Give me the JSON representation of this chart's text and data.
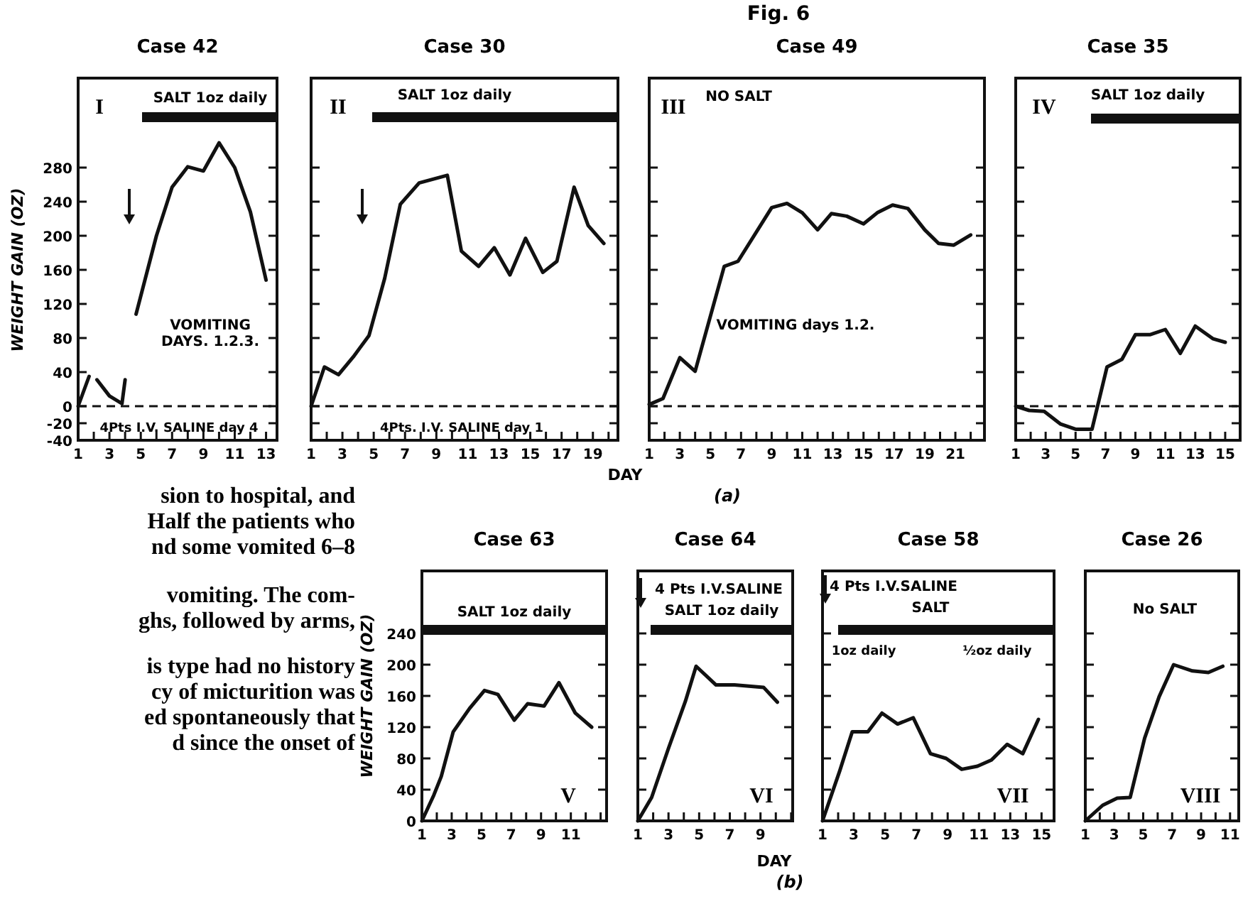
{
  "chart_data": [
    {
      "type": "line",
      "title": "Case 42",
      "ylabel": "WEIGHT GAIN (OZ)",
      "annotations": [
        "I",
        "SALT 1oz daily",
        "VOMITING\nDAYS. 1.2.3.",
        "4Pts I.V. SALINE day 4"
      ],
      "x": [
        1,
        1.7,
        1.9,
        2.2,
        3,
        3.8,
        4,
        4.3,
        4.7,
        6,
        7,
        8,
        9,
        10,
        11,
        12,
        13
      ],
      "series": [
        {
          "color": "#111111",
          "values": [
            0,
            35,
            null,
            31,
            12,
            3,
            31,
            null,
            108,
            200,
            257,
            281,
            276,
            309,
            280,
            228,
            148
          ]
        }
      ],
      "xlim": [
        1,
        13.7
      ],
      "ylim": [
        -40,
        385
      ],
      "xticks": [
        1,
        {
          "value": 2,
          "label": null
        },
        3,
        {
          "value": 4,
          "label": null
        },
        5,
        {
          "value": 6,
          "label": null
        },
        7,
        {
          "value": 8,
          "label": null
        },
        9,
        {
          "value": 10,
          "label": null
        },
        11,
        {
          "value": 12,
          "label": null
        },
        13
      ],
      "yticks": [
        -40,
        -20,
        0,
        40,
        80,
        120,
        160,
        200,
        240,
        280
      ],
      "ref_lines": [
        {
          "axis": "y",
          "value": 0,
          "line_style": "dashed"
        }
      ]
    },
    {
      "type": "line",
      "title": "Case 30",
      "annotations": [
        "II",
        "SALT 1oz daily",
        "4Pts. I.V. SALINE day 1"
      ],
      "x": [
        1,
        1.85,
        2.75,
        3.7,
        4.7,
        5.7,
        6.7,
        7.9,
        9.7,
        10.6,
        11.7,
        12.7,
        13.7,
        14.7,
        15.8,
        16.7,
        17.8,
        18.7,
        19.7
      ],
      "series": [
        {
          "color": "#111111",
          "values": [
            0,
            46,
            37,
            58,
            83,
            150,
            237,
            262,
            271,
            182,
            164,
            186,
            154,
            197,
            157,
            170,
            257,
            212,
            191
          ]
        }
      ],
      "xlim": [
        1,
        20.6
      ],
      "ylim": [
        -40,
        385
      ],
      "xticks": [
        1,
        {
          "value": 2,
          "label": null
        },
        3,
        {
          "value": 4,
          "label": null
        },
        5,
        {
          "value": 6,
          "label": null
        },
        7,
        {
          "value": 8,
          "label": null
        },
        9,
        {
          "value": 10,
          "label": null
        },
        11,
        {
          "value": 12,
          "label": null
        },
        13,
        {
          "value": 14,
          "label": null
        },
        15,
        {
          "value": 16,
          "label": null
        },
        17,
        {
          "value": 18,
          "label": null
        },
        19,
        {
          "value": 20,
          "label": null
        }
      ],
      "yticks": [
        -40,
        -20,
        0,
        40,
        80,
        120,
        160,
        200,
        240,
        280
      ],
      "tick_labels": "x",
      "ref_lines": [
        {
          "axis": "y",
          "value": 0,
          "line_style": "dashed"
        }
      ]
    },
    {
      "type": "line",
      "title": "Case 49",
      "xlabel": "DAY",
      "annotations": [
        "III",
        "NO SALT",
        "VOMITING days 1.2.",
        "Fig. 6",
        "(a)"
      ],
      "x": [
        1,
        1.9,
        3,
        4,
        5.9,
        6.8,
        9,
        10,
        11,
        12,
        12.9,
        13.9,
        15,
        15.9,
        16.9,
        17.9,
        19,
        19.9,
        20.9,
        22
      ],
      "series": [
        {
          "color": "#111111",
          "values": [
            2,
            9,
            57,
            41,
            164,
            170,
            233,
            238,
            227,
            207,
            226,
            223,
            214,
            227,
            236,
            232,
            207,
            191,
            189,
            201
          ]
        }
      ],
      "xlim": [
        1,
        22.9
      ],
      "ylim": [
        -40,
        385
      ],
      "xticks": [
        1,
        {
          "value": 2,
          "label": null
        },
        3,
        {
          "value": 4,
          "label": null
        },
        5,
        {
          "value": 6,
          "label": null
        },
        7,
        {
          "value": 8,
          "label": null
        },
        9,
        {
          "value": 10,
          "label": null
        },
        11,
        {
          "value": 12,
          "label": null
        },
        13,
        {
          "value": 14,
          "label": null
        },
        15,
        {
          "value": 16,
          "label": null
        },
        17,
        {
          "value": 18,
          "label": null
        },
        19,
        {
          "value": 20,
          "label": null
        },
        21,
        {
          "value": 22,
          "label": null
        }
      ],
      "yticks": [
        -40,
        -20,
        0,
        40,
        80,
        120,
        160,
        200,
        240,
        280
      ],
      "tick_labels": "x",
      "ref_lines": [
        {
          "axis": "y",
          "value": 0,
          "line_style": "dashed"
        }
      ]
    },
    {
      "type": "line",
      "title": "Case 35",
      "annotations": [
        "IV",
        "SALT 1oz daily"
      ],
      "x": [
        1,
        1.9,
        2.9,
        4,
        5,
        6.1,
        7.1,
        8.1,
        9,
        10,
        11,
        12,
        13,
        14.2,
        15
      ],
      "series": [
        {
          "color": "#111111",
          "values": [
            0,
            -5,
            -6,
            -21,
            -27,
            -27,
            46,
            55,
            84,
            84,
            90,
            62,
            94,
            79,
            75
          ]
        }
      ],
      "xlim": [
        1,
        16
      ],
      "ylim": [
        -40,
        385
      ],
      "xticks": [
        1,
        {
          "value": 2,
          "label": null
        },
        3,
        {
          "value": 4,
          "label": null
        },
        5,
        {
          "value": 6,
          "label": null
        },
        7,
        {
          "value": 8,
          "label": null
        },
        9,
        {
          "value": 10,
          "label": null
        },
        11,
        {
          "value": 12,
          "label": null
        },
        13,
        {
          "value": 14,
          "label": null
        },
        15
      ],
      "yticks": [
        -40,
        -20,
        0,
        40,
        80,
        120,
        160,
        200,
        240,
        280
      ],
      "tick_labels": "x",
      "ref_lines": [
        {
          "axis": "y",
          "value": 0,
          "line_style": "dashed"
        }
      ]
    },
    {
      "type": "line",
      "title": "Case 63",
      "ylabel": "WEIGHT GAIN (OZ)",
      "annotations": [
        "V",
        "SALT 1oz daily"
      ],
      "x": [
        1,
        1.8,
        2.3,
        3.1,
        4.2,
        5.2,
        6.1,
        7.2,
        8.1,
        9.2,
        10.2,
        11.3,
        12.4
      ],
      "series": [
        {
          "color": "#111111",
          "values": [
            0,
            33,
            57,
            114,
            144,
            167,
            162,
            129,
            150,
            147,
            177,
            138,
            120
          ]
        }
      ],
      "xlim": [
        1,
        13.4
      ],
      "ylim": [
        0,
        320
      ],
      "xticks": [
        1,
        {
          "value": 2,
          "label": null
        },
        3,
        {
          "value": 4,
          "label": null
        },
        5,
        {
          "value": 6,
          "label": null
        },
        7,
        {
          "value": 8,
          "label": null
        },
        9,
        {
          "value": 10,
          "label": null
        },
        11,
        {
          "value": 12,
          "label": null
        },
        {
          "value": 13,
          "label": null
        }
      ],
      "yticks": [
        0,
        40,
        80,
        120,
        160,
        200,
        240
      ]
    },
    {
      "type": "line",
      "title": "Case 64",
      "xlabel": "DAY",
      "annotations": [
        "VI",
        "4 Pts I.V.SALINE",
        "SALT 1oz daily",
        "(b)"
      ],
      "x": [
        1,
        1.9,
        3,
        4.1,
        4.8,
        6.1,
        7.3,
        9.2,
        10.1
      ],
      "series": [
        {
          "color": "#111111",
          "values": [
            0,
            30,
            93,
            153,
            198,
            174,
            174,
            171,
            152
          ]
        }
      ],
      "xlim": [
        1,
        11.1
      ],
      "ylim": [
        0,
        320
      ],
      "xticks": [
        1,
        {
          "value": 2,
          "label": null
        },
        3,
        {
          "value": 4,
          "label": null
        },
        5,
        {
          "value": 6,
          "label": null
        },
        7,
        {
          "value": 8,
          "label": null
        },
        9,
        {
          "value": 10,
          "label": null
        },
        {
          "value": 11,
          "label": null
        }
      ],
      "yticks": [
        0,
        40,
        80,
        120,
        160,
        200,
        240
      ],
      "tick_labels": "x"
    },
    {
      "type": "line",
      "title": "Case 58",
      "annotations": [
        "VII",
        "4 Pts I.V.SALINE",
        "SALT",
        "1oz daily",
        "½oz daily"
      ],
      "x": [
        1,
        2.1,
        2.9,
        3.9,
        4.8,
        5.8,
        6.8,
        7.9,
        8.9,
        9.9,
        10.9,
        11.8,
        12.8,
        13.8,
        14.8
      ],
      "series": [
        {
          "color": "#111111",
          "values": [
            0,
            64,
            114,
            114,
            138,
            124,
            132,
            86,
            80,
            66,
            70,
            78,
            98,
            86,
            130
          ]
        }
      ],
      "xlim": [
        1,
        15.8
      ],
      "ylim": [
        0,
        320
      ],
      "xticks": [
        1,
        {
          "value": 2,
          "label": null
        },
        3,
        {
          "value": 4,
          "label": null
        },
        5,
        {
          "value": 6,
          "label": null
        },
        7,
        {
          "value": 8,
          "label": null
        },
        9,
        {
          "value": 10,
          "label": null
        },
        11,
        {
          "value": 12,
          "label": null
        },
        13,
        {
          "value": 14,
          "label": null
        },
        15
      ],
      "yticks": [
        0,
        40,
        80,
        120,
        160,
        200,
        240
      ],
      "tick_labels": "x"
    },
    {
      "type": "line",
      "title": "Case 26",
      "annotations": [
        "VIII",
        "No SALT"
      ],
      "x": [
        1,
        2.2,
        3.2,
        4.1,
        5.1,
        6.1,
        7.1,
        8.4,
        9.5,
        10.5
      ],
      "series": [
        {
          "color": "#111111",
          "values": [
            0,
            20,
            29,
            30,
            106,
            159,
            200,
            192,
            190,
            198
          ]
        }
      ],
      "xlim": [
        1,
        11.6
      ],
      "ylim": [
        0,
        320
      ],
      "xticks": [
        1,
        {
          "value": 2,
          "label": null
        },
        3,
        {
          "value": 4,
          "label": null
        },
        5,
        {
          "value": 6,
          "label": null
        },
        7,
        {
          "value": 8,
          "label": null
        },
        9,
        {
          "value": 10,
          "label": null
        },
        11
      ],
      "yticks": [
        0,
        40,
        80,
        120,
        160,
        200,
        240
      ],
      "tick_labels": "x"
    },
    {
      "type": "other",
      "annotations": [
        "sion to hospital, and",
        "Half the patients who",
        "nd some vomited 6–8",
        "vomiting. The com-",
        "ghs, followed by arms,",
        "is type had no history",
        "cy of micturition was",
        "ed spontaneously that",
        "d since the onset of"
      ]
    }
  ]
}
